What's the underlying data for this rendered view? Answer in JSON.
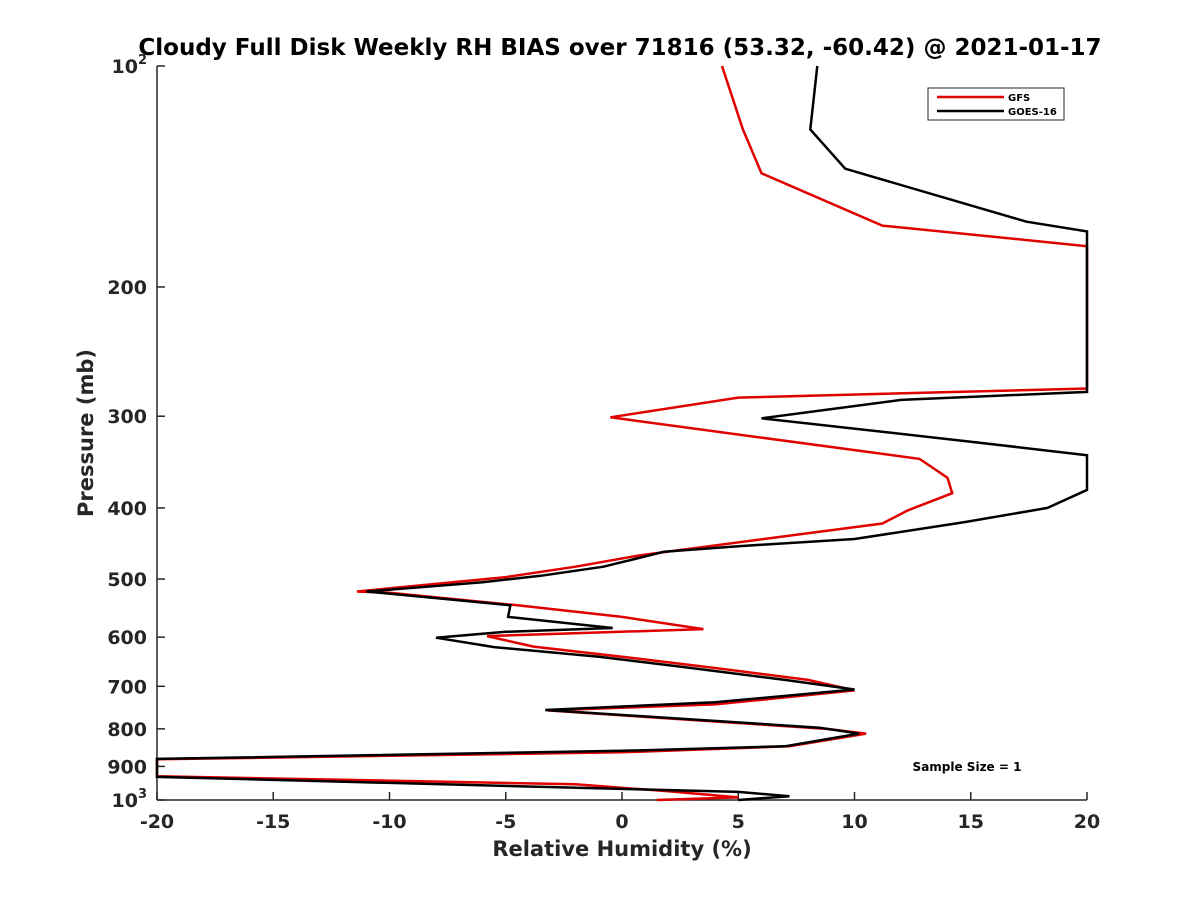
{
  "chart_data": {
    "type": "line",
    "title": "Cloudy Full Disk Weekly RH BIAS over 71816 (53.32, -60.42) @ 2021-01-17",
    "xlabel": "Relative Humidity (%)",
    "ylabel": "Pressure (mb)",
    "xlim": [
      -20,
      20
    ],
    "ylim": [
      100,
      1000
    ],
    "yscale": "log",
    "y_reversed": true,
    "grid": false,
    "legend_position": "top-right",
    "xticks": [
      {
        "value": -20,
        "label": "-20"
      },
      {
        "value": -15,
        "label": "-15"
      },
      {
        "value": -10,
        "label": "-10"
      },
      {
        "value": -5,
        "label": "-5"
      },
      {
        "value": 0,
        "label": "0"
      },
      {
        "value": 5,
        "label": "5"
      },
      {
        "value": 10,
        "label": "10"
      },
      {
        "value": 15,
        "label": "15"
      },
      {
        "value": 20,
        "label": "20"
      }
    ],
    "yticks": [
      {
        "value": 100,
        "base": "10",
        "exp": "2"
      },
      {
        "value": 200,
        "label": "200"
      },
      {
        "value": 300,
        "label": "300"
      },
      {
        "value": 400,
        "label": "400"
      },
      {
        "value": 500,
        "label": "500"
      },
      {
        "value": 600,
        "label": "600"
      },
      {
        "value": 700,
        "label": "700"
      },
      {
        "value": 800,
        "label": "800"
      },
      {
        "value": 900,
        "label": "900"
      },
      {
        "value": 1000,
        "base": "10",
        "exp": "3"
      }
    ],
    "series": [
      {
        "name": "GFS",
        "color": "#e00000",
        "points": [
          [
            4.3,
            100
          ],
          [
            5.2,
            122
          ],
          [
            6.0,
            140
          ],
          [
            11.2,
            165
          ],
          [
            20.0,
            176
          ],
          [
            20.0,
            275
          ],
          [
            5.0,
            283
          ],
          [
            -0.5,
            301
          ],
          [
            12.8,
            343
          ],
          [
            14.0,
            364
          ],
          [
            14.2,
            382
          ],
          [
            12.3,
            403
          ],
          [
            11.2,
            420
          ],
          [
            0.8,
            464
          ],
          [
            -2.0,
            481
          ],
          [
            -5.0,
            497
          ],
          [
            -11.4,
            520
          ],
          [
            -10.0,
            522
          ],
          [
            -4.5,
            543
          ],
          [
            0.0,
            563
          ],
          [
            3.5,
            585
          ],
          [
            -5.8,
            598
          ],
          [
            -4.5,
            611
          ],
          [
            -3.8,
            618
          ],
          [
            0.0,
            638
          ],
          [
            4.0,
            661
          ],
          [
            8.0,
            686
          ],
          [
            10.0,
            709
          ],
          [
            4.0,
            741
          ],
          [
            -3.2,
            755
          ],
          [
            8.8,
            800
          ],
          [
            10.5,
            812
          ],
          [
            7.2,
            845
          ],
          [
            0.0,
            861
          ],
          [
            -20.0,
            880
          ],
          [
            -20.0,
            928
          ],
          [
            -2.0,
            952
          ],
          [
            2.0,
            973
          ],
          [
            5.0,
            992
          ],
          [
            1.5,
            1000
          ]
        ]
      },
      {
        "name": "GOES-16",
        "color": "#000000",
        "points": [
          [
            8.4,
            100
          ],
          [
            8.1,
            122
          ],
          [
            9.6,
            138
          ],
          [
            17.4,
            163
          ],
          [
            20.0,
            168
          ],
          [
            20.0,
            278
          ],
          [
            12.0,
            285
          ],
          [
            6.0,
            302
          ],
          [
            15.0,
            325
          ],
          [
            20.0,
            339
          ],
          [
            20.0,
            378
          ],
          [
            18.3,
            400
          ],
          [
            14.8,
            418
          ],
          [
            10.0,
            441
          ],
          [
            5.0,
            451
          ],
          [
            1.8,
            459
          ],
          [
            -0.8,
            481
          ],
          [
            -3.5,
            495
          ],
          [
            -6.0,
            505
          ],
          [
            -11.0,
            520
          ],
          [
            -4.8,
            543
          ],
          [
            -4.9,
            563
          ],
          [
            -0.4,
            583
          ],
          [
            -5.0,
            590
          ],
          [
            -8.0,
            601
          ],
          [
            -5.5,
            619
          ],
          [
            -1.0,
            638
          ],
          [
            2.5,
            658
          ],
          [
            7.0,
            686
          ],
          [
            10.0,
            707
          ],
          [
            4.0,
            736
          ],
          [
            -3.3,
            754
          ],
          [
            8.5,
            797
          ],
          [
            10.2,
            812
          ],
          [
            7.0,
            845
          ],
          [
            0.0,
            857
          ],
          [
            -20.0,
            879
          ],
          [
            -20.0,
            930
          ],
          [
            5.0,
            975
          ],
          [
            7.2,
            988
          ],
          [
            5.0,
            1000
          ]
        ]
      }
    ],
    "annotation": "Sample Size = 1"
  }
}
